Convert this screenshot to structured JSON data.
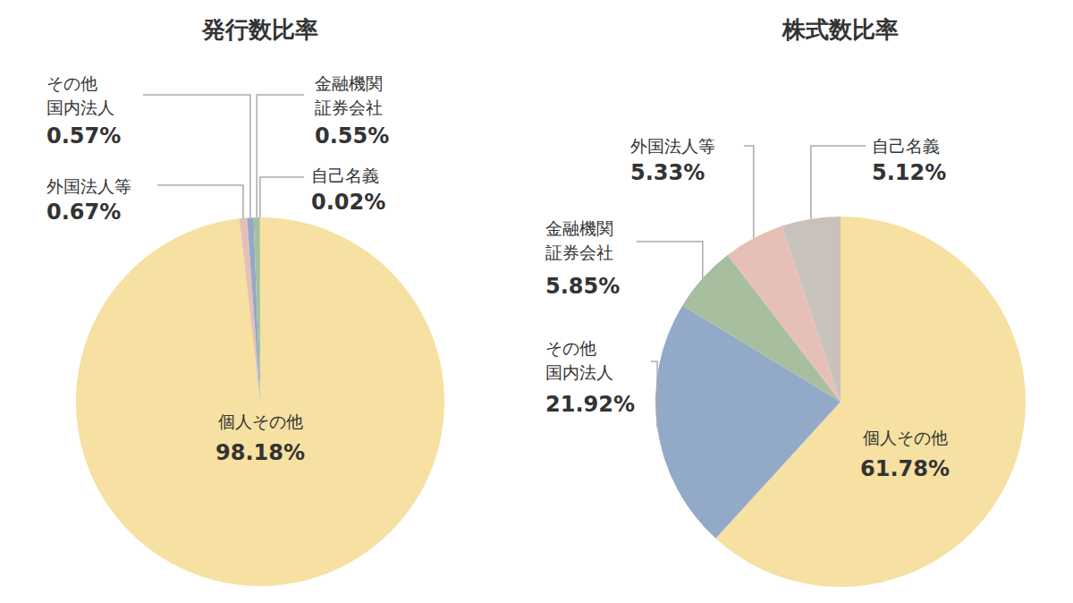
{
  "chart_data": [
    {
      "type": "pie",
      "title": "発行数比率",
      "categories": [
        "個人その他",
        "外国法人等",
        "その他\n国内法人",
        "金融機関\n証券会社",
        "自己名義"
      ],
      "values": [
        98.18,
        0.67,
        0.57,
        0.55,
        0.02
      ],
      "value_labels": [
        "98.18%",
        "0.67%",
        "0.57%",
        "0.55%",
        "0.02%"
      ],
      "colors": [
        "#f6e0a2",
        "#e6c0b6",
        "#93a9c8",
        "#a7bf9f",
        "#c9c1bc"
      ],
      "data_labels": true
    },
    {
      "type": "pie",
      "title": "株式数比率",
      "categories": [
        "個人その他",
        "その他\n国内法人",
        "金融機関\n証券会社",
        "外国法人等",
        "自己名義"
      ],
      "values": [
        61.78,
        21.92,
        5.85,
        5.33,
        5.12
      ],
      "value_labels": [
        "61.78%",
        "21.92%",
        "5.85%",
        "5.33%",
        "5.12%"
      ],
      "colors": [
        "#f6e0a2",
        "#93a9c8",
        "#a7bf9f",
        "#e6c0b6",
        "#c9c1bc"
      ],
      "data_labels": true
    }
  ]
}
